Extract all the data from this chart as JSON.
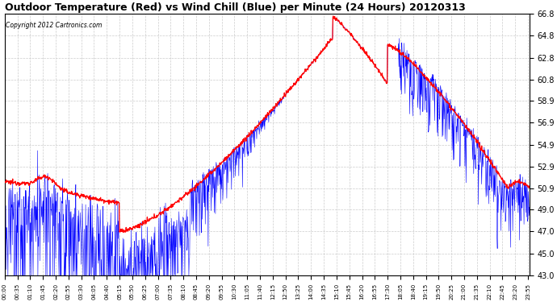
{
  "title": "Outdoor Temperature (Red) vs Wind Chill (Blue) per Minute (24 Hours) 20120313",
  "copyright_text": "Copyright 2012 Cartronics.com",
  "yticks": [
    43.0,
    45.0,
    47.0,
    49.0,
    50.9,
    52.9,
    54.9,
    56.9,
    58.9,
    60.8,
    62.8,
    64.8,
    66.8
  ],
  "ymin": 43.0,
  "ymax": 66.8,
  "background_color": "#ffffff",
  "plot_bg_color": "#ffffff",
  "grid_color": "#cccccc",
  "red_color": "#ff0000",
  "blue_color": "#0000ff",
  "title_fontsize": 9,
  "tick_interval_minutes": 35,
  "n_points": 1440
}
